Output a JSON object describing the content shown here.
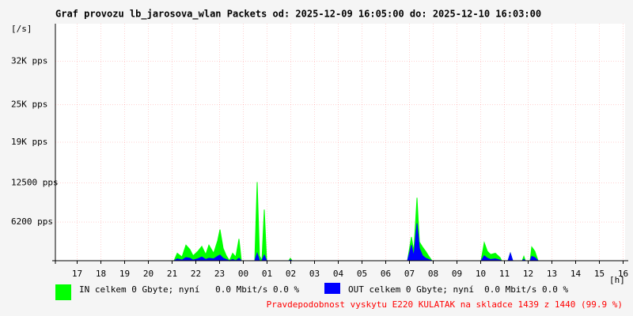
{
  "chart_data": {
    "type": "area",
    "title": "Graf provozu lb_jarosova_wlan Packets od: 2025-12-09 16:05:00 do: 2025-12-10 16:03:00",
    "ylabel": "[/s]",
    "xlabel": "[h]",
    "footnote": "Pravdepodobnost vyskytu E220 KULATAK na skladce 1439 z 1440 (99.9 %)",
    "xlim": [
      16.083,
      40.083
    ],
    "ylim": [
      0,
      38000
    ],
    "yticks": [
      {
        "value": 6200,
        "label": "6200 pps"
      },
      {
        "value": 12500,
        "label": "12500 pps"
      },
      {
        "value": 19000,
        "label": "19K pps"
      },
      {
        "value": 25000,
        "label": "25K pps"
      },
      {
        "value": 32000,
        "label": "32K pps"
      }
    ],
    "xticks": [
      17,
      18,
      19,
      20,
      21,
      22,
      23,
      {
        "value": 24,
        "label": "00"
      },
      {
        "value": 25,
        "label": "01"
      },
      {
        "value": 26,
        "label": "02"
      },
      {
        "value": 27,
        "label": "03"
      },
      {
        "value": 28,
        "label": "04"
      },
      {
        "value": 29,
        "label": "05"
      },
      {
        "value": 30,
        "label": "06"
      },
      {
        "value": 31,
        "label": "07"
      },
      {
        "value": 32,
        "label": "08"
      },
      {
        "value": 33,
        "label": "09"
      },
      {
        "value": 34,
        "label": "10"
      },
      {
        "value": 35,
        "label": "11"
      },
      {
        "value": 36,
        "label": "12"
      },
      {
        "value": 37,
        "label": "13"
      },
      {
        "value": 38,
        "label": "14"
      },
      {
        "value": 39,
        "label": "15"
      },
      {
        "value": 40,
        "label": "16"
      }
    ],
    "grid": true,
    "x": [
      16.083,
      21.083,
      21.217,
      21.417,
      21.583,
      21.75,
      21.883,
      22.083,
      22.25,
      22.417,
      22.55,
      22.75,
      22.917,
      23.017,
      23.15,
      23.283,
      23.417,
      23.55,
      23.683,
      23.817,
      23.917,
      24.483,
      24.583,
      24.683,
      24.783,
      24.883,
      24.983,
      25.917,
      25.983,
      26.05,
      30.917,
      31.083,
      31.183,
      31.317,
      31.417,
      31.55,
      31.683,
      31.817,
      31.95,
      34.017,
      34.15,
      34.283,
      34.417,
      34.617,
      34.817,
      34.883,
      35.15,
      35.25,
      35.35,
      35.75,
      35.817,
      35.883,
      36.083,
      36.15,
      36.283,
      36.417,
      40.033
    ],
    "series": [
      {
        "name": "IN celkem 0 Gbyte; nyní   0.0 Mbit/s 0.0 %",
        "color": "#00ff00",
        "values": [
          0,
          0,
          1200,
          600,
          2500,
          1800,
          800,
          1500,
          2300,
          1000,
          2500,
          1200,
          3200,
          5000,
          2000,
          800,
          0,
          1200,
          600,
          3500,
          0,
          0,
          12600,
          800,
          0,
          8200,
          0,
          0,
          400,
          0,
          0,
          3800,
          1500,
          10100,
          3000,
          2200,
          1500,
          700,
          0,
          0,
          2900,
          1500,
          1000,
          1200,
          500,
          0,
          0,
          1200,
          0,
          0,
          700,
          0,
          0,
          2200,
          1500,
          0,
          0
        ]
      },
      {
        "name": "OUT celkem 0 Gbyte; nyní  0.0 Mbit/s 0.0 %",
        "color": "#0000ff",
        "values": [
          0,
          0,
          300,
          100,
          500,
          400,
          100,
          300,
          600,
          200,
          400,
          300,
          700,
          900,
          400,
          200,
          0,
          200,
          0,
          400,
          0,
          0,
          1200,
          0,
          0,
          900,
          0,
          0,
          100,
          0,
          0,
          2500,
          700,
          6000,
          2000,
          800,
          400,
          200,
          0,
          0,
          800,
          400,
          200,
          300,
          100,
          0,
          0,
          1200,
          0,
          0,
          200,
          0,
          0,
          700,
          500,
          0,
          0
        ]
      }
    ]
  }
}
